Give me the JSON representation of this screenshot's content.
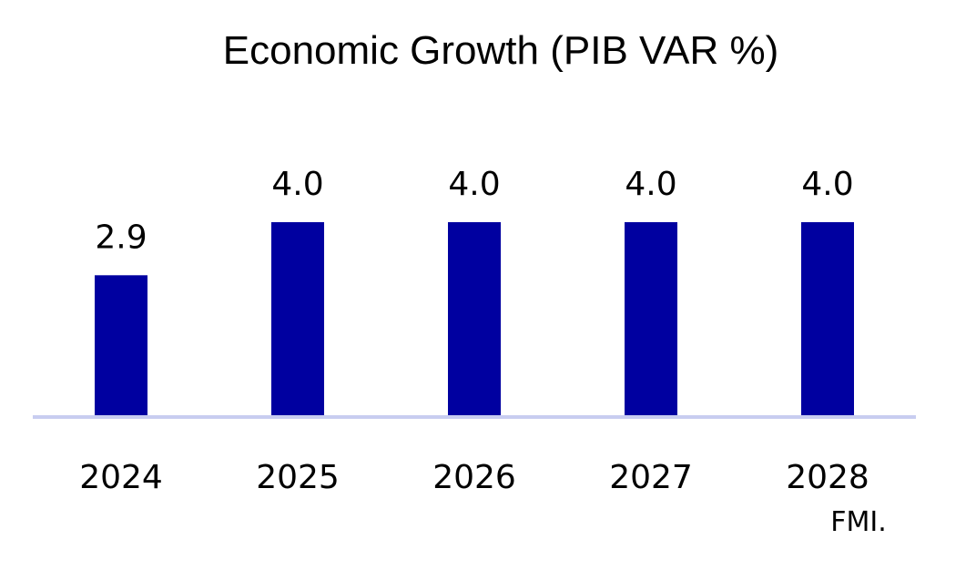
{
  "chart_data": {
    "type": "bar",
    "title": "Economic Growth (PIB VAR %)",
    "categories": [
      "2024",
      "2025",
      "2026",
      "2027",
      "2028"
    ],
    "values": [
      2.9,
      4.0,
      4.0,
      4.0,
      4.0
    ],
    "value_labels": [
      "2.9",
      "4.0",
      "4.0",
      "4.0",
      "4.0"
    ],
    "xlabel": "",
    "ylabel": "",
    "ylim": [
      0,
      4.0
    ],
    "grid": false,
    "legend": "none",
    "source": "FMI.",
    "colors": {
      "bar": "#0000A0",
      "axis": "#C8CDF0",
      "text": "#000000",
      "background": "#FFFFFF"
    }
  }
}
